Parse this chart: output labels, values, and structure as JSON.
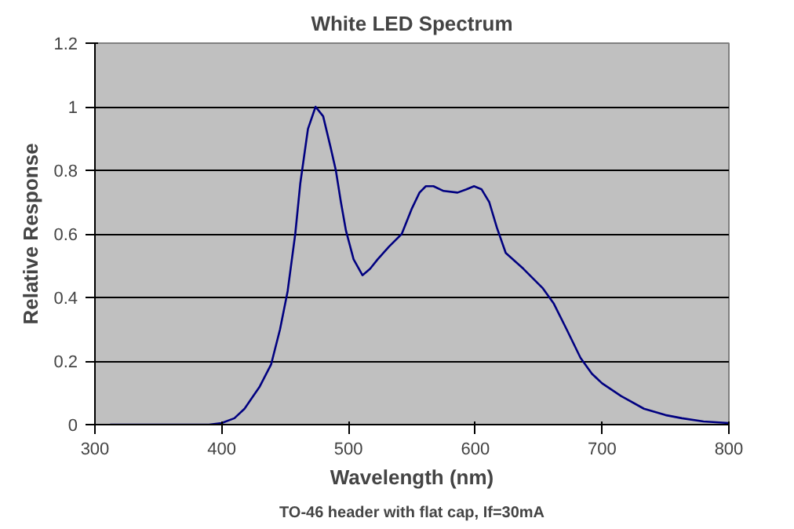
{
  "chart_data": {
    "type": "line",
    "title": "White LED Spectrum",
    "xlabel": "Wavelength (nm)",
    "ylabel": "Relative Response",
    "annotations": [
      "TO-46 header with flat cap, If=30mA"
    ],
    "series": [
      {
        "color": "#000080",
        "x": [
          312,
          350,
          390,
          400,
          410,
          418,
          430,
          439,
          446,
          452,
          458,
          462,
          468,
          474,
          480,
          486,
          490,
          494,
          498,
          504,
          511,
          517,
          523,
          532,
          542,
          550,
          556,
          561,
          567,
          575,
          586,
          593,
          599,
          605,
          611,
          617,
          624,
          638,
          653,
          662,
          672,
          683,
          692,
          700,
          715,
          733,
          750,
          763,
          780,
          800
        ],
        "values": [
          0,
          0,
          0,
          0.005,
          0.02,
          0.05,
          0.12,
          0.19,
          0.3,
          0.42,
          0.6,
          0.76,
          0.93,
          1.0,
          0.97,
          0.87,
          0.8,
          0.7,
          0.61,
          0.52,
          0.47,
          0.49,
          0.52,
          0.56,
          0.6,
          0.68,
          0.73,
          0.75,
          0.75,
          0.735,
          0.73,
          0.74,
          0.75,
          0.74,
          0.7,
          0.62,
          0.54,
          0.49,
          0.43,
          0.38,
          0.3,
          0.21,
          0.16,
          0.13,
          0.09,
          0.05,
          0.03,
          0.02,
          0.01,
          0.005
        ]
      }
    ],
    "xlim": [
      300,
      800
    ],
    "xticks": [
      300,
      400,
      500,
      600,
      700,
      800
    ],
    "ylim": [
      0,
      1.2
    ],
    "yticks": [
      0,
      0.2,
      0.4,
      0.6,
      0.8,
      1,
      1.2
    ],
    "grid": "y"
  }
}
